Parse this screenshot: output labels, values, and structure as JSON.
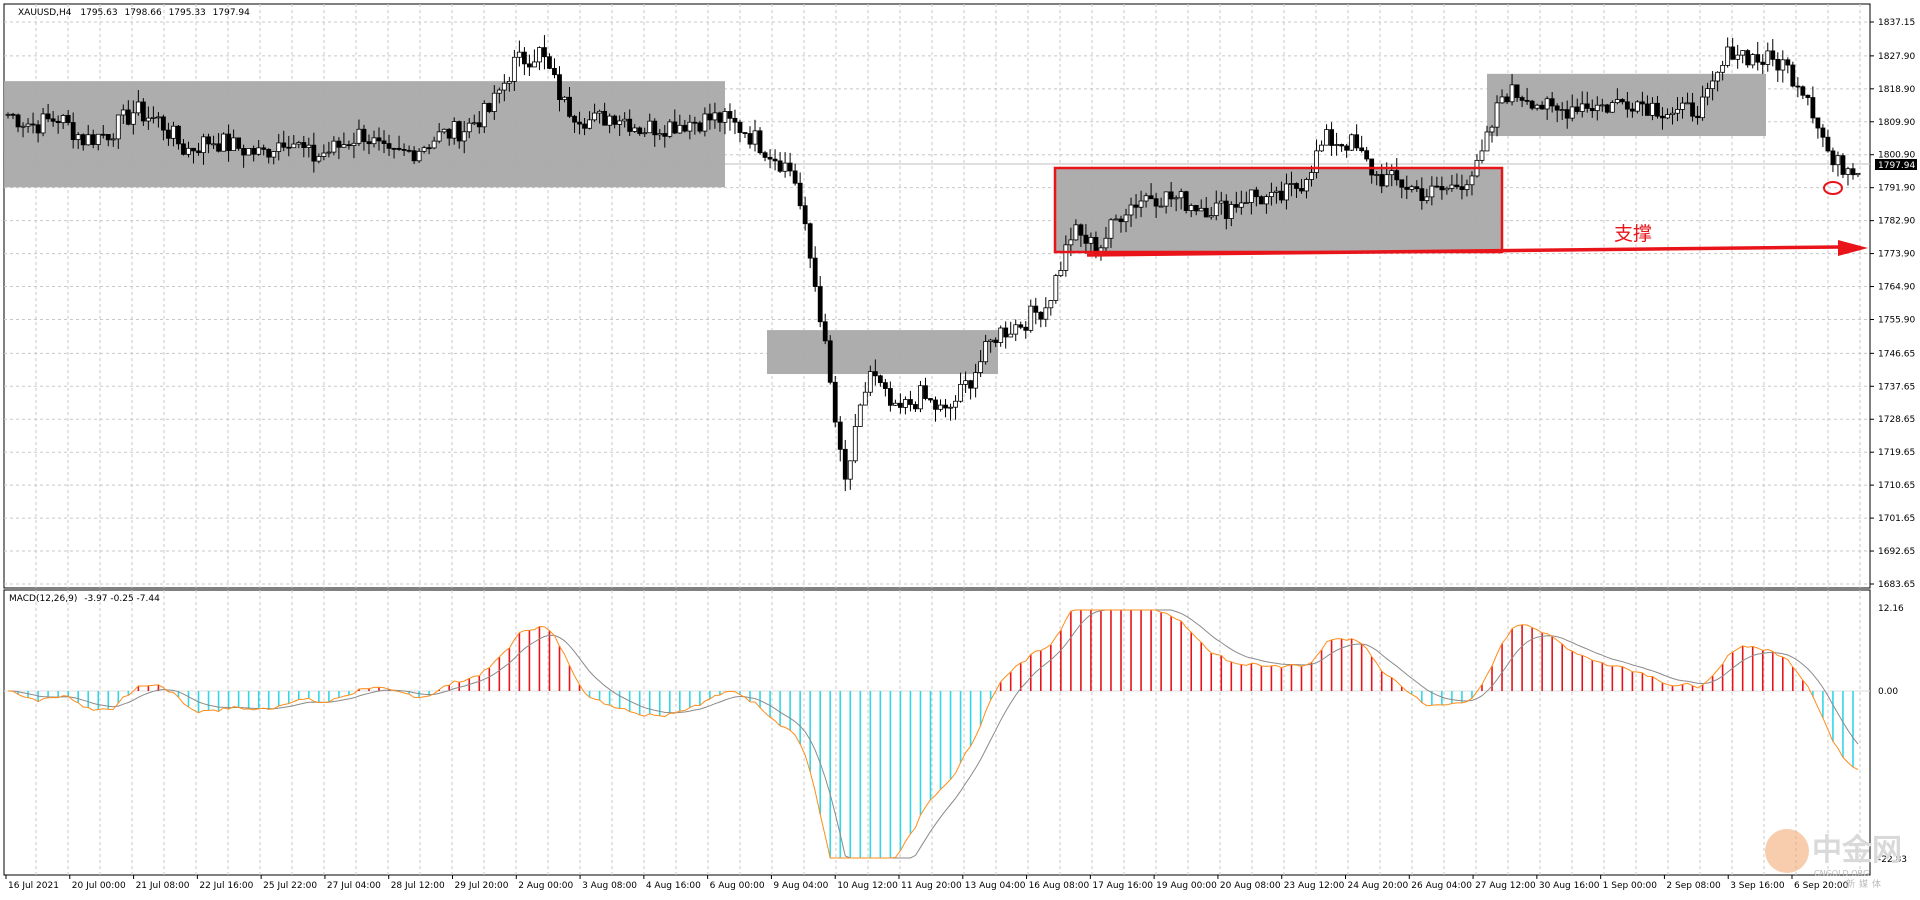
{
  "main_panel": {
    "header": {
      "symbol": "XAUUSD,H4",
      "open": "1795.63",
      "high": "1798.66",
      "low": "1795.33",
      "close": "1797.94"
    },
    "current_price_label": "1797.94",
    "annotation": "支撑"
  },
  "macd_panel": {
    "title": "MACD(12,26,9)",
    "values": "-3.97 -0.25 -7.44",
    "top_label": "12.16",
    "zero_label": "0.00",
    "bottom_label": "-22.83"
  },
  "watermark": {
    "brand": "中金网",
    "site": "CNGOLD.ORG",
    "tagline": "新媒体"
  },
  "colors": {
    "bull_candle": "#ffffff",
    "bear_candle": "#000000",
    "zone_fill": "#a9a9a9",
    "annotation_red": "#e8141a",
    "macd_positive_hist": "#e8141a",
    "macd_negative_hist": "#33d6e8",
    "macd_line": "#ff8c1a",
    "signal_line": "#8a8a8a",
    "grid": "#c8c8c8"
  },
  "chart_data": {
    "type": "candlestick",
    "instrument": "XAUUSD",
    "timeframe": "H4",
    "price_axis_ticks": [
      1837.15,
      1827.9,
      1818.9,
      1809.9,
      1800.9,
      1791.9,
      1782.9,
      1773.9,
      1764.9,
      1755.9,
      1746.65,
      1737.65,
      1728.65,
      1719.65,
      1710.65,
      1701.65,
      1692.65,
      1683.65
    ],
    "price_range": [
      1683.65,
      1837.15
    ],
    "time_axis_labels": [
      "16 Jul 2021",
      "20 Jul 00:00",
      "21 Jul 08:00",
      "22 Jul 16:00",
      "25 Jul 22:00",
      "27 Jul 04:00",
      "28 Jul 12:00",
      "29 Jul 20:00",
      "2 Aug 00:00",
      "3 Aug 08:00",
      "4 Aug 16:00",
      "6 Aug 00:00",
      "9 Aug 04:00",
      "10 Aug 12:00",
      "11 Aug 20:00",
      "13 Aug 04:00",
      "16 Aug 08:00",
      "17 Aug 16:00",
      "19 Aug 00:00",
      "20 Aug 08:00",
      "23 Aug 12:00",
      "24 Aug 20:00",
      "26 Aug 04:00",
      "27 Aug 12:00",
      "30 Aug 16:00",
      "1 Sep 00:00",
      "2 Sep 08:00",
      "3 Sep 16:00",
      "6 Sep 20:00"
    ],
    "approx_closes": [
      1812,
      1809,
      1811,
      1805,
      1807,
      1813,
      1810,
      1802,
      1805,
      1803,
      1801,
      1806,
      1800,
      1803,
      1807,
      1800,
      1802,
      1806,
      1808,
      1813,
      1826,
      1829,
      1814,
      1810,
      1812,
      1808,
      1809,
      1810,
      1811,
      1808,
      1802,
      1796,
      1760,
      1710,
      1742,
      1730,
      1735,
      1730,
      1740,
      1752,
      1755,
      1760,
      1780,
      1775,
      1786,
      1790,
      1789,
      1787,
      1786,
      1790,
      1788,
      1793,
      1805,
      1804,
      1795,
      1793,
      1790,
      1792,
      1797,
      1818,
      1817,
      1812,
      1815,
      1814,
      1816,
      1814,
      1812,
      1815,
      1830,
      1827,
      1826,
      1818,
      1798,
      1797.94
    ],
    "zones": [
      {
        "label": "",
        "price_low": 1792,
        "price_high": 1821
      },
      {
        "label": "",
        "price_low": 1741,
        "price_high": 1753
      },
      {
        "label": "",
        "price_low": 1774,
        "price_high": 1797
      },
      {
        "label": "",
        "price_low": 1806,
        "price_high": 1823
      }
    ],
    "annotation": {
      "text": "支撑",
      "level": 1774
    },
    "macd": {
      "params": "12,26,9",
      "values": [
        -3.97,
        -0.25,
        -7.44
      ],
      "range": [
        -22.83,
        12.16
      ]
    }
  }
}
